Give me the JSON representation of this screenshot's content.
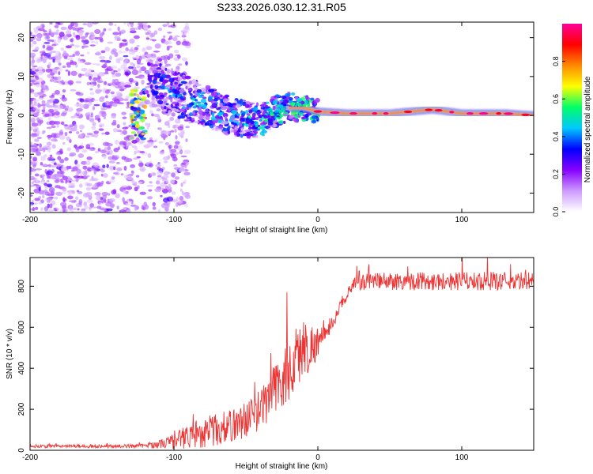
{
  "title": "S233.2026.030.12.31.R05",
  "chart_data": [
    {
      "type": "heatmap",
      "name": "spectrogram",
      "xlabel": "Height of straight line (km)",
      "ylabel": "Frequency (Hz)",
      "xlim": [
        -200,
        150
      ],
      "ylim": [
        -25,
        24
      ],
      "x_ticks": [
        -200,
        -100,
        0,
        100
      ],
      "y_ticks": [
        -20,
        -10,
        0,
        10,
        20
      ],
      "colorbar": {
        "label": "Normalized spectral amplitude",
        "range": [
          0.0,
          1.0
        ],
        "ticks": [
          0.0,
          0.2,
          0.4,
          0.6,
          0.8
        ],
        "colormap": [
          "#ffffff",
          "#cc99ff",
          "#8800ff",
          "#0000ff",
          "#00c8ff",
          "#00ff66",
          "#ffff00",
          "#ff8800",
          "#ff0000",
          "#ff0099"
        ]
      },
      "ridge": [
        {
          "x": -120,
          "f": 10,
          "amp": 0.35
        },
        {
          "x": -110,
          "f": 8,
          "amp": 0.45
        },
        {
          "x": -100,
          "f": 6,
          "amp": 0.5
        },
        {
          "x": -90,
          "f": 4,
          "amp": 0.55
        },
        {
          "x": -80,
          "f": 3,
          "amp": 0.5
        },
        {
          "x": -70,
          "f": 1,
          "amp": 0.55
        },
        {
          "x": -60,
          "f": 0,
          "amp": 0.5
        },
        {
          "x": -50,
          "f": -1,
          "amp": 0.55
        },
        {
          "x": -40,
          "f": -1.5,
          "amp": 0.6
        },
        {
          "x": -30,
          "f": 1,
          "amp": 0.6
        },
        {
          "x": -20,
          "f": 2,
          "amp": 0.65
        },
        {
          "x": -10,
          "f": 2,
          "amp": 0.65
        },
        {
          "x": 0,
          "f": 1,
          "amp": 0.7
        },
        {
          "x": 20,
          "f": 0.5,
          "amp": 0.85
        },
        {
          "x": 50,
          "f": 0.5,
          "amp": 0.9
        },
        {
          "x": 80,
          "f": 1.5,
          "amp": 0.9
        },
        {
          "x": 100,
          "f": 0.5,
          "amp": 0.85
        },
        {
          "x": 130,
          "f": 0.5,
          "amp": 0.85
        },
        {
          "x": 150,
          "f": 0,
          "amp": 0.9
        }
      ]
    },
    {
      "type": "line",
      "name": "snr",
      "xlabel": "Height of straight line (km)",
      "ylabel": "SNR (10 * v/v)",
      "xlim": [
        -200,
        150
      ],
      "ylim": [
        0,
        940
      ],
      "x_ticks": [
        -200,
        -100,
        0,
        100
      ],
      "y_ticks": [
        0,
        200,
        400,
        600,
        800
      ],
      "color": "#ee3333",
      "series": [
        {
          "name": "SNR",
          "x": [
            -200,
            -180,
            -160,
            -140,
            -120,
            -110,
            -100,
            -90,
            -80,
            -70,
            -60,
            -50,
            -40,
            -30,
            -20,
            -15,
            -10,
            -5,
            0,
            5,
            10,
            15,
            20,
            25,
            30,
            35,
            40,
            50,
            60,
            70,
            80,
            90,
            100,
            110,
            120,
            130,
            140,
            150
          ],
          "y": [
            20,
            20,
            20,
            20,
            22,
            30,
            45,
            70,
            90,
            100,
            120,
            150,
            200,
            300,
            380,
            450,
            500,
            500,
            530,
            560,
            620,
            690,
            760,
            800,
            820,
            820,
            820,
            825,
            825,
            825,
            825,
            825,
            825,
            825,
            825,
            825,
            825,
            825
          ],
          "noise": [
            8,
            8,
            8,
            8,
            10,
            20,
            40,
            60,
            80,
            80,
            80,
            90,
            100,
            130,
            160,
            160,
            150,
            120,
            80,
            40,
            30,
            30,
            30,
            40,
            40,
            40,
            45,
            45,
            45,
            45,
            45,
            45,
            45,
            45,
            45,
            45,
            45,
            45
          ]
        }
      ]
    }
  ]
}
